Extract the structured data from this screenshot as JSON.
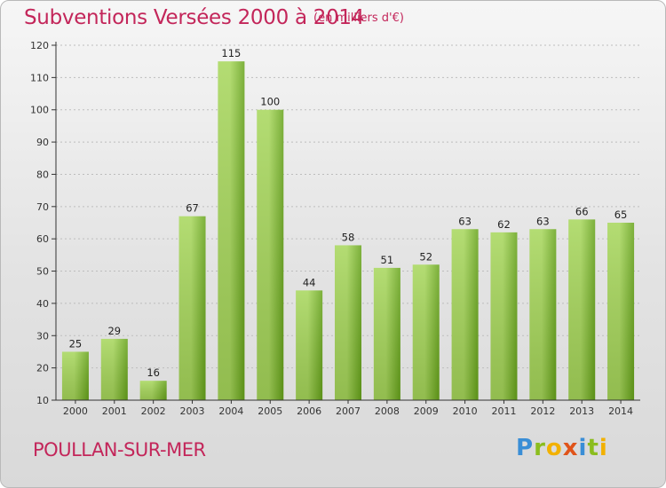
{
  "header": {
    "title": "Subventions Versées 2000 à 2014",
    "subtitle": "(en milliers d'€)"
  },
  "footer": {
    "commune": "POULLAN-SUR-MER",
    "logo_letters": [
      {
        "ch": "P",
        "color": "#3a8ed6"
      },
      {
        "ch": "r",
        "color": "#8bbd1e"
      },
      {
        "ch": "o",
        "color": "#f2b100"
      },
      {
        "ch": "x",
        "color": "#e0541a"
      },
      {
        "ch": "i",
        "color": "#3a8ed6"
      },
      {
        "ch": "t",
        "color": "#8bbd1e"
      },
      {
        "ch": "i",
        "color": "#f2b100"
      }
    ]
  },
  "colors": {
    "title": "#c3265a",
    "bar_light": "#a6d65a",
    "bar_dark": "#66a31a",
    "axis": "#333333",
    "grid": "#bdbdbd"
  },
  "chart_data": {
    "type": "bar",
    "title": "Subventions Versées 2000 à 2014",
    "subtitle": "(en milliers d'€)",
    "xlabel": "",
    "ylabel": "",
    "categories": [
      "2000",
      "2001",
      "2002",
      "2003",
      "2004",
      "2005",
      "2006",
      "2007",
      "2008",
      "2009",
      "2010",
      "2011",
      "2012",
      "2013",
      "2014"
    ],
    "values": [
      25,
      29,
      16,
      67,
      115,
      100,
      44,
      58,
      51,
      52,
      63,
      62,
      63,
      66,
      65
    ],
    "ylim": [
      10,
      120
    ],
    "yticks": [
      10,
      20,
      30,
      40,
      50,
      60,
      70,
      80,
      90,
      100,
      110,
      120
    ],
    "grid": true,
    "data_labels": true
  }
}
